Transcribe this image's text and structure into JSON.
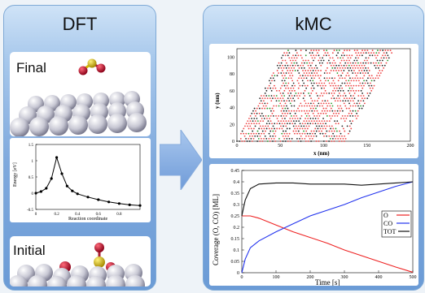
{
  "left_panel": {
    "title": "DFT",
    "final_label": "Final",
    "initial_label": "Initial",
    "energy_plot": {
      "ylabel": "Energy [eV]",
      "xlabel": "Reaction coordinate",
      "yticks": [
        "-0.5",
        "0",
        "0.5",
        "1",
        "1.5"
      ],
      "xticks": [
        "0",
        "0.2",
        "0.4",
        "0.6",
        "0.8"
      ]
    }
  },
  "right_panel": {
    "title": "kMC",
    "lattice_plot": {
      "xlabel": "x  (nm)",
      "ylabel": "y  (nm)",
      "xticks": [
        "0",
        "50",
        "100",
        "150",
        "200"
      ],
      "yticks": [
        "0",
        "20",
        "40",
        "60",
        "80",
        "100"
      ]
    },
    "coverage_plot": {
      "xlabel": "Time [s]",
      "ylabel": "Coverage (O, CO) [ML]",
      "xticks": [
        "0",
        "100",
        "200",
        "300",
        "400",
        "500"
      ],
      "yticks": [
        "0",
        "0.05",
        "0.1",
        "0.15",
        "0.2",
        "0.25",
        "0.3",
        "0.35",
        "0.4",
        "0.45"
      ],
      "legend": [
        "O",
        "CO",
        "TOT"
      ]
    }
  },
  "colors": {
    "O": "#ee2222",
    "CO": "#2233ee",
    "TOT": "#111111",
    "arrow": "#8fb4e3"
  },
  "chart_data": [
    {
      "type": "line",
      "xlabel": "Reaction coordinate",
      "ylabel": "Energy [eV]",
      "xlim": [
        0,
        1
      ],
      "ylim": [
        -0.5,
        1.5
      ],
      "series": [
        {
          "x": [
            0,
            0.05,
            0.1,
            0.15,
            0.2,
            0.25,
            0.3,
            0.35,
            0.4,
            0.5,
            0.6,
            0.7,
            0.8,
            0.9,
            1.0
          ],
          "values": [
            0,
            0.05,
            0.15,
            0.45,
            1.1,
            0.6,
            0.22,
            0.07,
            -0.02,
            -0.12,
            -0.2,
            -0.27,
            -0.32,
            -0.36,
            -0.38
          ]
        }
      ]
    },
    {
      "type": "line",
      "xlabel": "Time [s]",
      "ylabel": "Coverage (O, CO) [ML]",
      "xlim": [
        0,
        500
      ],
      "ylim": [
        0,
        0.45
      ],
      "series": [
        {
          "name": "O",
          "x": [
            0,
            25,
            50,
            100,
            150,
            200,
            250,
            300,
            350,
            400,
            450,
            500
          ],
          "values": [
            0.25,
            0.25,
            0.24,
            0.21,
            0.18,
            0.155,
            0.13,
            0.1,
            0.075,
            0.05,
            0.025,
            0.002
          ]
        },
        {
          "name": "CO",
          "x": [
            0,
            10,
            25,
            50,
            100,
            150,
            200,
            250,
            300,
            350,
            400,
            450,
            500
          ],
          "values": [
            0,
            0.06,
            0.11,
            0.14,
            0.18,
            0.215,
            0.25,
            0.275,
            0.3,
            0.33,
            0.355,
            0.38,
            0.4
          ]
        },
        {
          "name": "TOT",
          "x": [
            0,
            10,
            25,
            50,
            100,
            150,
            200,
            250,
            300,
            350,
            400,
            450,
            500
          ],
          "values": [
            0.25,
            0.32,
            0.37,
            0.39,
            0.395,
            0.395,
            0.39,
            0.39,
            0.39,
            0.385,
            0.39,
            0.395,
            0.4
          ]
        }
      ]
    }
  ]
}
